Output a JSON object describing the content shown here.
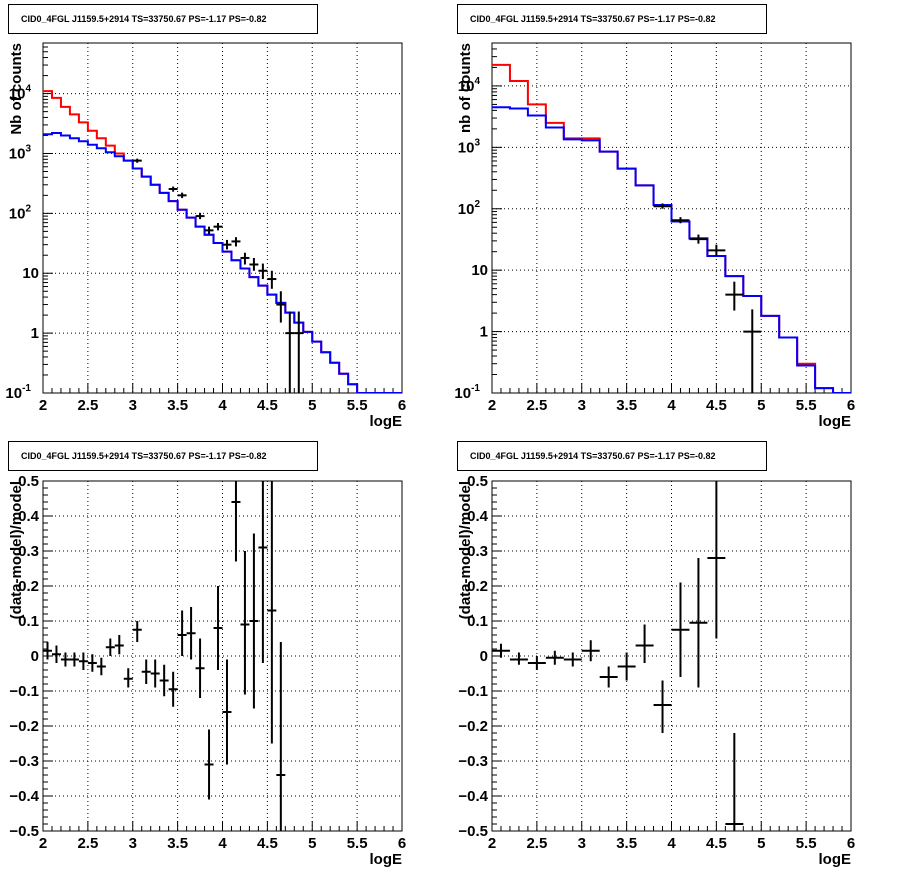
{
  "chart_data": [
    {
      "panel": "top-left",
      "type": "line",
      "title": "CID0_4FGL J1159.5+2914 TS=33750.67 PS=-1.17 PS=-0.82",
      "xlabel": "logE",
      "ylabel": "Nb of counts",
      "xlim": [
        2,
        6
      ],
      "ylim": [
        0.1,
        70000
      ],
      "yscale": "log",
      "grid": true,
      "xticks": [
        "2",
        "2.5",
        "3",
        "3.5",
        "4",
        "4.5",
        "5",
        "5.5",
        "6"
      ],
      "yticks": [
        {
          "v": 0.1,
          "label": "10",
          "sup": "-1"
        },
        {
          "v": 1,
          "label": "1",
          "sup": ""
        },
        {
          "v": 10,
          "label": "10",
          "sup": ""
        },
        {
          "v": 100,
          "label": "10",
          "sup": "2"
        },
        {
          "v": 1000,
          "label": "10",
          "sup": "3"
        },
        {
          "v": 10000,
          "label": "10",
          "sup": "4"
        }
      ],
      "bin_edges": [
        2.0,
        2.1,
        2.2,
        2.3,
        2.4,
        2.5,
        2.6,
        2.7,
        2.8,
        2.9,
        3.0,
        3.1,
        3.2,
        3.3,
        3.4,
        3.5,
        3.6,
        3.7,
        3.8,
        3.9,
        4.0,
        4.1,
        4.2,
        4.3,
        4.4,
        4.5,
        4.6,
        4.7,
        4.8,
        4.9,
        5.0,
        5.1,
        5.2,
        5.3,
        5.4,
        5.5,
        5.6,
        5.7,
        5.8,
        5.9,
        6.0
      ],
      "series": [
        {
          "color": "#ff0000",
          "kind": "histogram",
          "values": [
            11000,
            8500,
            6000,
            4500,
            3300,
            2400,
            1800,
            1350,
            1000,
            760,
            560,
            410,
            300,
            220,
            160,
            115,
            85,
            60,
            44,
            32,
            23,
            16.5,
            12,
            8.6,
            6.2,
            4.4,
            3.2,
            2.2,
            1.5,
            1.05,
            0.72,
            0.48,
            0.32,
            0.21,
            0.14,
            0.1,
            0.1,
            0.1,
            0.1,
            0.1
          ]
        },
        {
          "color": "#0000ff",
          "kind": "histogram",
          "values": [
            2100,
            2200,
            2000,
            1800,
            1600,
            1400,
            1220,
            1050,
            900,
            760,
            560,
            410,
            300,
            220,
            160,
            115,
            85,
            60,
            44,
            32,
            23,
            16.5,
            12,
            8.6,
            6.2,
            4.4,
            3.2,
            2.2,
            1.5,
            1.05,
            0.72,
            0.48,
            0.32,
            0.21,
            0.14,
            0.1,
            0.1,
            0.1,
            0.1,
            0.1
          ]
        },
        {
          "color": "#000000",
          "kind": "points",
          "points": [
            {
              "x": 3.05,
              "y": 760,
              "xerr": 0.05,
              "ylo": 700,
              "yhi": 820
            },
            {
              "x": 3.45,
              "y": 255,
              "xerr": 0.05,
              "ylo": 230,
              "yhi": 280
            },
            {
              "x": 3.55,
              "y": 200,
              "xerr": 0.05,
              "ylo": 180,
              "yhi": 222
            },
            {
              "x": 3.75,
              "y": 90,
              "xerr": 0.05,
              "ylo": 80,
              "yhi": 102
            },
            {
              "x": 3.85,
              "y": 52,
              "xerr": 0.05,
              "ylo": 45,
              "yhi": 60
            },
            {
              "x": 3.95,
              "y": 60,
              "xerr": 0.05,
              "ylo": 52,
              "yhi": 69
            },
            {
              "x": 4.05,
              "y": 30,
              "xerr": 0.05,
              "ylo": 25,
              "yhi": 36
            },
            {
              "x": 4.15,
              "y": 34,
              "xerr": 0.05,
              "ylo": 28,
              "yhi": 40
            },
            {
              "x": 4.25,
              "y": 18,
              "xerr": 0.05,
              "ylo": 14,
              "yhi": 22
            },
            {
              "x": 4.35,
              "y": 14,
              "xerr": 0.05,
              "ylo": 11,
              "yhi": 18
            },
            {
              "x": 4.45,
              "y": 11,
              "xerr": 0.05,
              "ylo": 8,
              "yhi": 14.5
            },
            {
              "x": 4.55,
              "y": 8,
              "xerr": 0.05,
              "ylo": 5.5,
              "yhi": 11
            },
            {
              "x": 4.65,
              "y": 3,
              "xerr": 0.05,
              "ylo": 1.5,
              "yhi": 5
            },
            {
              "x": 4.75,
              "y": 1,
              "xerr": 0.05,
              "ylo": 0.1,
              "yhi": 2.3
            },
            {
              "x": 4.85,
              "y": 1,
              "xerr": 0.05,
              "ylo": 0.1,
              "yhi": 2.3
            }
          ]
        }
      ]
    },
    {
      "panel": "top-right",
      "type": "line",
      "title": "CID0_4FGL J1159.5+2914 TS=33750.67 PS=-1.17 PS=-0.82",
      "xlabel": "logE",
      "ylabel": "nb of counts",
      "xlim": [
        2,
        6
      ],
      "ylim": [
        0.1,
        50000
      ],
      "yscale": "log",
      "grid": true,
      "xticks": [
        "2",
        "2.5",
        "3",
        "3.5",
        "4",
        "4.5",
        "5",
        "5.5",
        "6"
      ],
      "yticks": [
        {
          "v": 0.1,
          "label": "10",
          "sup": "-1"
        },
        {
          "v": 1,
          "label": "1",
          "sup": ""
        },
        {
          "v": 10,
          "label": "10",
          "sup": ""
        },
        {
          "v": 100,
          "label": "10",
          "sup": "2"
        },
        {
          "v": 1000,
          "label": "10",
          "sup": "3"
        },
        {
          "v": 10000,
          "label": "10",
          "sup": "4"
        }
      ],
      "bin_edges": [
        2.0,
        2.2,
        2.4,
        2.6,
        2.8,
        3.0,
        3.2,
        3.4,
        3.6,
        3.8,
        4.0,
        4.2,
        4.4,
        4.6,
        4.8,
        5.0,
        5.2,
        5.4,
        5.6,
        5.8,
        6.0
      ],
      "series": [
        {
          "color": "#ff0000",
          "kind": "histogram",
          "values": [
            22000,
            12000,
            5000,
            2500,
            1400,
            1400,
            850,
            450,
            240,
            115,
            62,
            33,
            17,
            8,
            3.8,
            1.8,
            0.8,
            0.3,
            0.12,
            0.1
          ]
        },
        {
          "color": "#0000ff",
          "kind": "histogram",
          "values": [
            4500,
            4300,
            3300,
            2100,
            1350,
            1300,
            850,
            450,
            240,
            115,
            62,
            33,
            17,
            8,
            3.8,
            1.8,
            0.8,
            0.28,
            0.12,
            0.1
          ]
        },
        {
          "color": "#000000",
          "kind": "points",
          "points": [
            {
              "x": 3.9,
              "y": 110,
              "xerr": 0.1,
              "ylo": 100,
              "yhi": 122
            },
            {
              "x": 4.1,
              "y": 65,
              "xerr": 0.1,
              "ylo": 58,
              "yhi": 73
            },
            {
              "x": 4.3,
              "y": 32,
              "xerr": 0.1,
              "ylo": 27,
              "yhi": 38
            },
            {
              "x": 4.5,
              "y": 21,
              "xerr": 0.1,
              "ylo": 17,
              "yhi": 26
            },
            {
              "x": 4.7,
              "y": 4,
              "xerr": 0.1,
              "ylo": 2.2,
              "yhi": 6.5
            },
            {
              "x": 4.9,
              "y": 1,
              "xerr": 0.1,
              "ylo": 0.1,
              "yhi": 2.3
            }
          ]
        }
      ]
    },
    {
      "panel": "bottom-left",
      "type": "scatter",
      "title": "CID0_4FGL J1159.5+2914 TS=33750.67 PS=-1.17 PS=-0.82",
      "xlabel": "logE",
      "ylabel": "(data-model)/model",
      "xlim": [
        2,
        6
      ],
      "ylim": [
        -0.5,
        0.5
      ],
      "yscale": "linear",
      "grid": true,
      "xticks": [
        "2",
        "2.5",
        "3",
        "3.5",
        "4",
        "4.5",
        "5",
        "5.5",
        "6"
      ],
      "yticks": [
        {
          "v": -0.5,
          "label": "−0.5",
          "sup": ""
        },
        {
          "v": -0.4,
          "label": "−0.4",
          "sup": ""
        },
        {
          "v": -0.3,
          "label": "−0.3",
          "sup": ""
        },
        {
          "v": -0.2,
          "label": "−0.2",
          "sup": ""
        },
        {
          "v": -0.1,
          "label": "−0.1",
          "sup": ""
        },
        {
          "v": 0,
          "label": "0",
          "sup": ""
        },
        {
          "v": 0.1,
          "label": "0.1",
          "sup": ""
        },
        {
          "v": 0.2,
          "label": "0.2",
          "sup": ""
        },
        {
          "v": 0.3,
          "label": "0.3",
          "sup": ""
        },
        {
          "v": 0.4,
          "label": "0.4",
          "sup": ""
        },
        {
          "v": 0.5,
          "label": "0.5",
          "sup": ""
        }
      ],
      "series": [
        {
          "color": "#000000",
          "kind": "points",
          "points": [
            {
              "x": 2.05,
              "y": 0.015,
              "xerr": 0.05,
              "ylo": -0.01,
              "yhi": 0.04
            },
            {
              "x": 2.15,
              "y": 0.005,
              "xerr": 0.05,
              "ylo": -0.02,
              "yhi": 0.03
            },
            {
              "x": 2.25,
              "y": -0.01,
              "xerr": 0.05,
              "ylo": -0.03,
              "yhi": 0.01
            },
            {
              "x": 2.35,
              "y": -0.01,
              "xerr": 0.05,
              "ylo": -0.03,
              "yhi": 0.01
            },
            {
              "x": 2.45,
              "y": -0.015,
              "xerr": 0.05,
              "ylo": -0.04,
              "yhi": 0.01
            },
            {
              "x": 2.55,
              "y": -0.02,
              "xerr": 0.05,
              "ylo": -0.045,
              "yhi": 0.005
            },
            {
              "x": 2.65,
              "y": -0.03,
              "xerr": 0.05,
              "ylo": -0.055,
              "yhi": -0.005
            },
            {
              "x": 2.75,
              "y": 0.025,
              "xerr": 0.05,
              "ylo": 0.0,
              "yhi": 0.05
            },
            {
              "x": 2.85,
              "y": 0.03,
              "xerr": 0.05,
              "ylo": 0.005,
              "yhi": 0.06
            },
            {
              "x": 2.95,
              "y": -0.065,
              "xerr": 0.05,
              "ylo": -0.09,
              "yhi": -0.035
            },
            {
              "x": 3.05,
              "y": 0.075,
              "xerr": 0.05,
              "ylo": 0.04,
              "yhi": 0.1
            },
            {
              "x": 3.15,
              "y": -0.045,
              "xerr": 0.05,
              "ylo": -0.08,
              "yhi": -0.01
            },
            {
              "x": 3.25,
              "y": -0.05,
              "xerr": 0.05,
              "ylo": -0.09,
              "yhi": -0.01
            },
            {
              "x": 3.35,
              "y": -0.07,
              "xerr": 0.05,
              "ylo": -0.115,
              "yhi": -0.025
            },
            {
              "x": 3.45,
              "y": -0.095,
              "xerr": 0.05,
              "ylo": -0.145,
              "yhi": -0.045
            },
            {
              "x": 3.55,
              "y": 0.06,
              "xerr": 0.05,
              "ylo": 0.0,
              "yhi": 0.13
            },
            {
              "x": 3.65,
              "y": 0.065,
              "xerr": 0.05,
              "ylo": -0.01,
              "yhi": 0.14
            },
            {
              "x": 3.75,
              "y": -0.035,
              "xerr": 0.05,
              "ylo": -0.12,
              "yhi": 0.05
            },
            {
              "x": 3.85,
              "y": -0.31,
              "xerr": 0.05,
              "ylo": -0.41,
              "yhi": -0.21
            },
            {
              "x": 3.95,
              "y": 0.08,
              "xerr": 0.05,
              "ylo": -0.04,
              "yhi": 0.2
            },
            {
              "x": 4.05,
              "y": -0.16,
              "xerr": 0.05,
              "ylo": -0.31,
              "yhi": -0.01
            },
            {
              "x": 4.15,
              "y": 0.44,
              "xerr": 0.05,
              "ylo": 0.27,
              "yhi": 0.6
            },
            {
              "x": 4.25,
              "y": 0.09,
              "xerr": 0.05,
              "ylo": -0.11,
              "yhi": 0.3
            },
            {
              "x": 4.35,
              "y": 0.1,
              "xerr": 0.05,
              "ylo": -0.15,
              "yhi": 0.35
            },
            {
              "x": 4.45,
              "y": 0.31,
              "xerr": 0.05,
              "ylo": -0.02,
              "yhi": 0.64
            },
            {
              "x": 4.55,
              "y": 0.13,
              "xerr": 0.05,
              "ylo": -0.25,
              "yhi": 0.52
            },
            {
              "x": 4.65,
              "y": -0.34,
              "xerr": 0.05,
              "ylo": -0.72,
              "yhi": 0.04
            }
          ]
        }
      ]
    },
    {
      "panel": "bottom-right",
      "type": "scatter",
      "title": "CID0_4FGL J1159.5+2914 TS=33750.67 PS=-1.17 PS=-0.82",
      "xlabel": "logE",
      "ylabel": "(data-model)/model",
      "xlim": [
        2,
        6
      ],
      "ylim": [
        -0.5,
        0.5
      ],
      "yscale": "linear",
      "grid": true,
      "xticks": [
        "2",
        "2.5",
        "3",
        "3.5",
        "4",
        "4.5",
        "5",
        "5.5",
        "6"
      ],
      "yticks": [
        {
          "v": -0.5,
          "label": "−0.5",
          "sup": ""
        },
        {
          "v": -0.4,
          "label": "−0.4",
          "sup": ""
        },
        {
          "v": -0.3,
          "label": "−0.3",
          "sup": ""
        },
        {
          "v": -0.2,
          "label": "−0.2",
          "sup": ""
        },
        {
          "v": -0.1,
          "label": "−0.1",
          "sup": ""
        },
        {
          "v": 0,
          "label": "0",
          "sup": ""
        },
        {
          "v": 0.1,
          "label": "0.1",
          "sup": ""
        },
        {
          "v": 0.2,
          "label": "0.2",
          "sup": ""
        },
        {
          "v": 0.3,
          "label": "0.3",
          "sup": ""
        },
        {
          "v": 0.4,
          "label": "0.4",
          "sup": ""
        },
        {
          "v": 0.5,
          "label": "0.5",
          "sup": ""
        }
      ],
      "series": [
        {
          "color": "#000000",
          "kind": "points",
          "points": [
            {
              "x": 2.1,
              "y": 0.015,
              "xerr": 0.1,
              "ylo": -0.005,
              "yhi": 0.035
            },
            {
              "x": 2.3,
              "y": -0.01,
              "xerr": 0.1,
              "ylo": -0.025,
              "yhi": 0.01
            },
            {
              "x": 2.5,
              "y": -0.02,
              "xerr": 0.1,
              "ylo": -0.04,
              "yhi": 0.0
            },
            {
              "x": 2.7,
              "y": -0.005,
              "xerr": 0.1,
              "ylo": -0.025,
              "yhi": 0.015
            },
            {
              "x": 2.9,
              "y": -0.01,
              "xerr": 0.1,
              "ylo": -0.03,
              "yhi": 0.01
            },
            {
              "x": 3.1,
              "y": 0.015,
              "xerr": 0.1,
              "ylo": -0.015,
              "yhi": 0.045
            },
            {
              "x": 3.3,
              "y": -0.06,
              "xerr": 0.1,
              "ylo": -0.09,
              "yhi": -0.03
            },
            {
              "x": 3.5,
              "y": -0.03,
              "xerr": 0.1,
              "ylo": -0.07,
              "yhi": 0.01
            },
            {
              "x": 3.7,
              "y": 0.03,
              "xerr": 0.1,
              "ylo": -0.02,
              "yhi": 0.09
            },
            {
              "x": 3.9,
              "y": -0.14,
              "xerr": 0.1,
              "ylo": -0.22,
              "yhi": -0.07
            },
            {
              "x": 4.1,
              "y": 0.075,
              "xerr": 0.1,
              "ylo": -0.06,
              "yhi": 0.21
            },
            {
              "x": 4.3,
              "y": 0.095,
              "xerr": 0.1,
              "ylo": -0.09,
              "yhi": 0.28
            },
            {
              "x": 4.5,
              "y": 0.28,
              "xerr": 0.1,
              "ylo": 0.05,
              "yhi": 0.5
            },
            {
              "x": 4.7,
              "y": -0.48,
              "xerr": 0.1,
              "ylo": -0.5,
              "yhi": -0.22
            }
          ]
        }
      ]
    }
  ]
}
